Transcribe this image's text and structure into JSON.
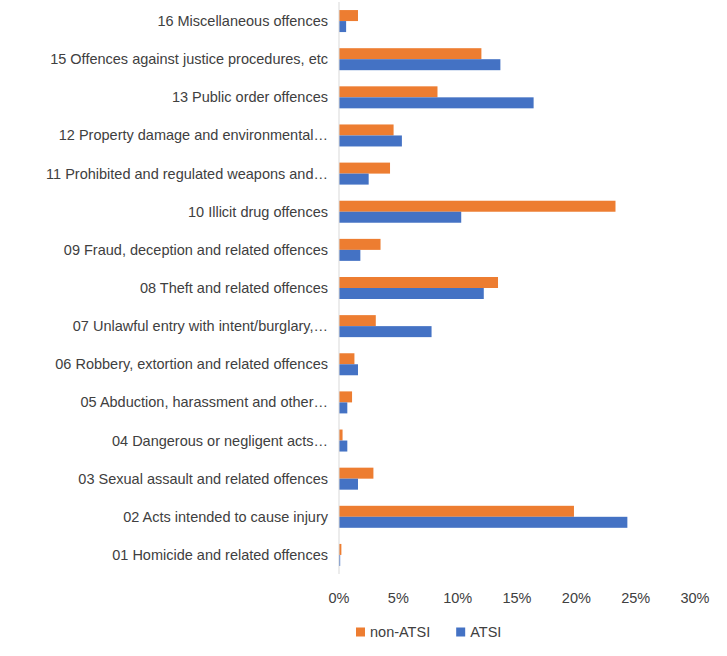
{
  "chart_data": {
    "type": "bar",
    "orientation": "horizontal",
    "categories": [
      "01 Homicide and related offences",
      "02 Acts intended to cause injury",
      "03 Sexual assault and related offences",
      "04 Dangerous or negligent acts…",
      "05 Abduction, harassment and other…",
      "06 Robbery, extortion and related offences",
      "07 Unlawful entry with intent/burglary,…",
      "08 Theft and related offences",
      "09 Fraud, deception and related offences",
      "10 Illicit drug offences",
      "11 Prohibited and regulated weapons and…",
      "12 Property damage and environmental…",
      "13 Public order offences",
      "15 Offences against justice procedures, etc",
      "16 Miscellaneous offences"
    ],
    "series": [
      {
        "name": "non-ATSI",
        "color": "#ed7d31",
        "values": [
          0.2,
          19.8,
          2.9,
          0.3,
          1.1,
          1.3,
          3.1,
          13.4,
          3.5,
          23.3,
          4.3,
          4.6,
          8.3,
          12.0,
          1.6
        ]
      },
      {
        "name": "ATSI",
        "color": "#4472c4",
        "values": [
          0.1,
          24.3,
          1.6,
          0.7,
          0.7,
          1.6,
          7.8,
          12.2,
          1.8,
          10.3,
          2.5,
          5.3,
          16.4,
          13.6,
          0.6
        ]
      }
    ],
    "xlim": [
      0,
      30
    ],
    "xticks": [
      {
        "value": 0,
        "label": "0%"
      },
      {
        "value": 5,
        "label": "5%"
      },
      {
        "value": 10,
        "label": "10%"
      },
      {
        "value": 15,
        "label": "15%"
      },
      {
        "value": 20,
        "label": "20%"
      },
      {
        "value": 25,
        "label": "25%"
      },
      {
        "value": 30,
        "label": "30%"
      }
    ],
    "grid": false,
    "legend": "bottom"
  }
}
